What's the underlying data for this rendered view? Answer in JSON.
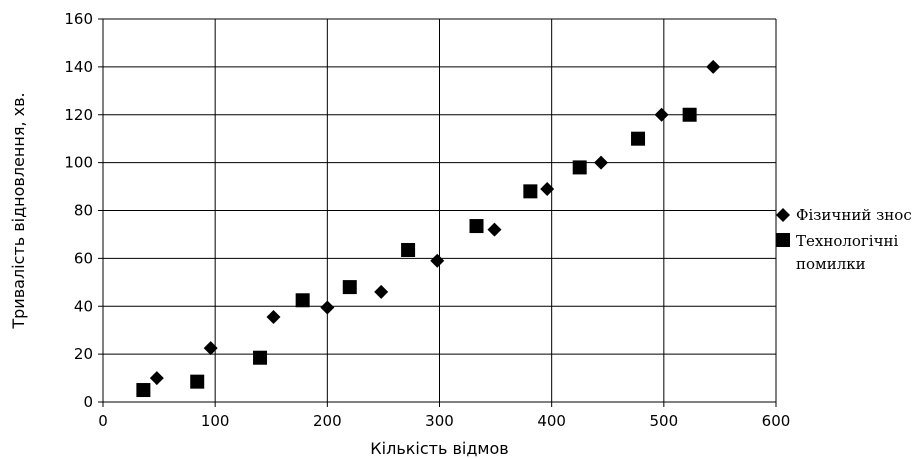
{
  "chart_data": {
    "type": "scatter",
    "xlabel": "Кількість відмов",
    "ylabel": "Тривалість відновлення, хв.",
    "xlim": [
      0,
      600
    ],
    "ylim": [
      0,
      160
    ],
    "x_ticks": [
      0,
      100,
      200,
      300,
      400,
      500,
      600
    ],
    "y_ticks": [
      0,
      20,
      40,
      60,
      80,
      100,
      120,
      140,
      160
    ],
    "grid": true,
    "legend_position": "right",
    "series": [
      {
        "name": "Фізичний знос",
        "marker": "diamond",
        "color": "#000000",
        "points": [
          {
            "x": 48,
            "y": 10
          },
          {
            "x": 96,
            "y": 22.5
          },
          {
            "x": 152,
            "y": 35.5
          },
          {
            "x": 200,
            "y": 39.5
          },
          {
            "x": 248,
            "y": 46
          },
          {
            "x": 298,
            "y": 59
          },
          {
            "x": 349,
            "y": 72
          },
          {
            "x": 396,
            "y": 89
          },
          {
            "x": 444,
            "y": 100
          },
          {
            "x": 498,
            "y": 120
          },
          {
            "x": 544,
            "y": 140
          }
        ]
      },
      {
        "name_lines": [
          "Технологічні",
          "помилки"
        ],
        "marker": "square",
        "color": "#000000",
        "points": [
          {
            "x": 36,
            "y": 5
          },
          {
            "x": 84,
            "y": 8.5
          },
          {
            "x": 140,
            "y": 18.5
          },
          {
            "x": 178,
            "y": 42.5
          },
          {
            "x": 220,
            "y": 48
          },
          {
            "x": 272,
            "y": 63.5
          },
          {
            "x": 333,
            "y": 73.5
          },
          {
            "x": 381,
            "y": 88
          },
          {
            "x": 425,
            "y": 98
          },
          {
            "x": 477,
            "y": 110
          },
          {
            "x": 523,
            "y": 120
          }
        ]
      }
    ]
  }
}
